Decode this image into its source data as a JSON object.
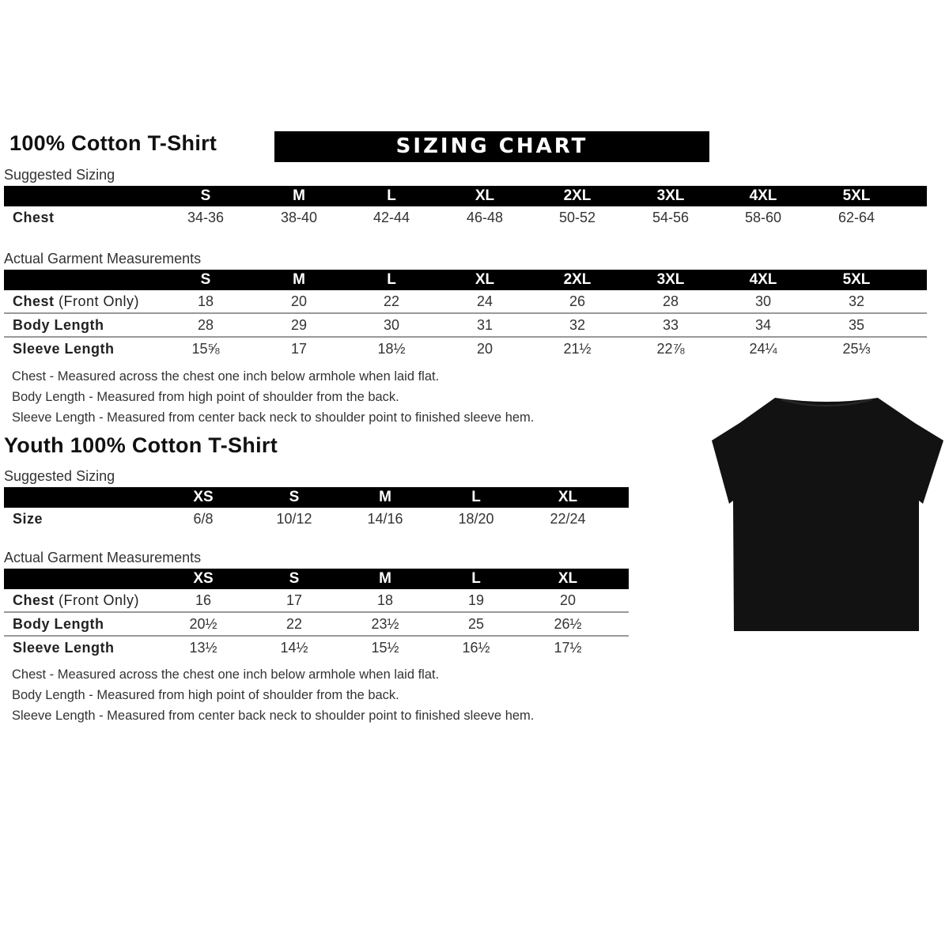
{
  "adult": {
    "title": "100% Cotton T-Shirt",
    "banner": "SIZING CHART",
    "suggested_label": "Suggested Sizing",
    "sizes": [
      "S",
      "M",
      "L",
      "XL",
      "2XL",
      "3XL",
      "4XL",
      "5XL"
    ],
    "suggested_rows": [
      {
        "label": "Chest",
        "values": [
          "34-36",
          "38-40",
          "42-44",
          "46-48",
          "50-52",
          "54-56",
          "58-60",
          "62-64"
        ]
      }
    ],
    "actual_label": "Actual Garment Measurements",
    "actual_rows": [
      {
        "label": "Chest",
        "label_extra": " (Front Only)",
        "values": [
          "18",
          "20",
          "22",
          "24",
          "26",
          "28",
          "30",
          "32"
        ]
      },
      {
        "label": "Body Length",
        "label_extra": "",
        "values": [
          "28",
          "29",
          "30",
          "31",
          "32",
          "33",
          "34",
          "35"
        ]
      },
      {
        "label": "Sleeve Length",
        "label_extra": "",
        "values": [
          "15⅝",
          "17",
          "18½",
          "20",
          "21½",
          "22⅞",
          "24¼",
          "25⅓"
        ]
      }
    ],
    "notes": [
      "Chest - Measured across the chest one inch below armhole when laid flat.",
      "Body Length - Measured from high point of shoulder from the back.",
      "Sleeve Length - Measured from center back neck to shoulder point to finished sleeve hem."
    ]
  },
  "youth": {
    "title": "Youth 100% Cotton T-Shirt",
    "suggested_label": "Suggested Sizing",
    "sizes": [
      "XS",
      "S",
      "M",
      "L",
      "XL"
    ],
    "suggested_rows": [
      {
        "label": "Size",
        "values": [
          "6/8",
          "10/12",
          "14/16",
          "18/20",
          "22/24"
        ]
      }
    ],
    "actual_label": "Actual Garment Measurements",
    "actual_rows": [
      {
        "label": "Chest",
        "label_extra": " (Front Only)",
        "values": [
          "16",
          "17",
          "18",
          "19",
          "20"
        ]
      },
      {
        "label": "Body Length",
        "label_extra": "",
        "values": [
          "20½",
          "22",
          "23½",
          "25",
          "26½"
        ]
      },
      {
        "label": "Sleeve Length",
        "label_extra": "",
        "values": [
          "13½",
          "14½",
          "15½",
          "16½",
          "17½"
        ]
      }
    ],
    "notes": [
      "Chest - Measured across the chest one inch below armhole when laid flat.",
      "Body Length - Measured from high point of shoulder from the back.",
      "Sleeve Length - Measured from center back neck to shoulder point to finished sleeve hem."
    ]
  },
  "colors": {
    "header_bg": "#000000",
    "tshirt": "#121212"
  },
  "image": {
    "icon": "black-tshirt"
  }
}
